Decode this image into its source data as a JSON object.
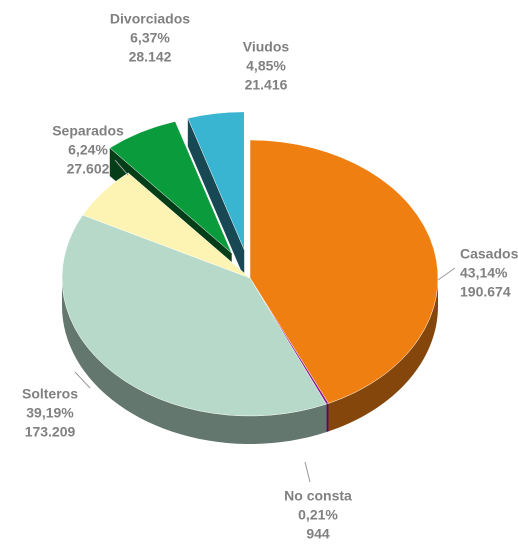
{
  "chart_data": {
    "type": "pie",
    "categories": [
      "Casados",
      "No consta",
      "Solteros",
      "Separados",
      "Divorciados",
      "Viudos"
    ],
    "values": [
      43.14,
      0.21,
      39.19,
      6.24,
      6.37,
      4.85
    ],
    "value_labels": [
      "43,14%",
      "0,21%",
      "39,19%",
      "6,24%",
      "6,37%",
      "4,85%"
    ],
    "counts": [
      190674,
      944,
      173209,
      27602,
      28142,
      21416
    ],
    "count_labels": [
      "190.674",
      "944",
      "173.209",
      "27.602",
      "28.142",
      "21.416"
    ],
    "colors": [
      "#f07f12",
      "#8e1a8c",
      "#b6d9c9",
      "#fdf3b2",
      "#0a9b3c",
      "#3ab5d1"
    ],
    "exploded": [
      false,
      false,
      false,
      false,
      true,
      true
    ]
  }
}
